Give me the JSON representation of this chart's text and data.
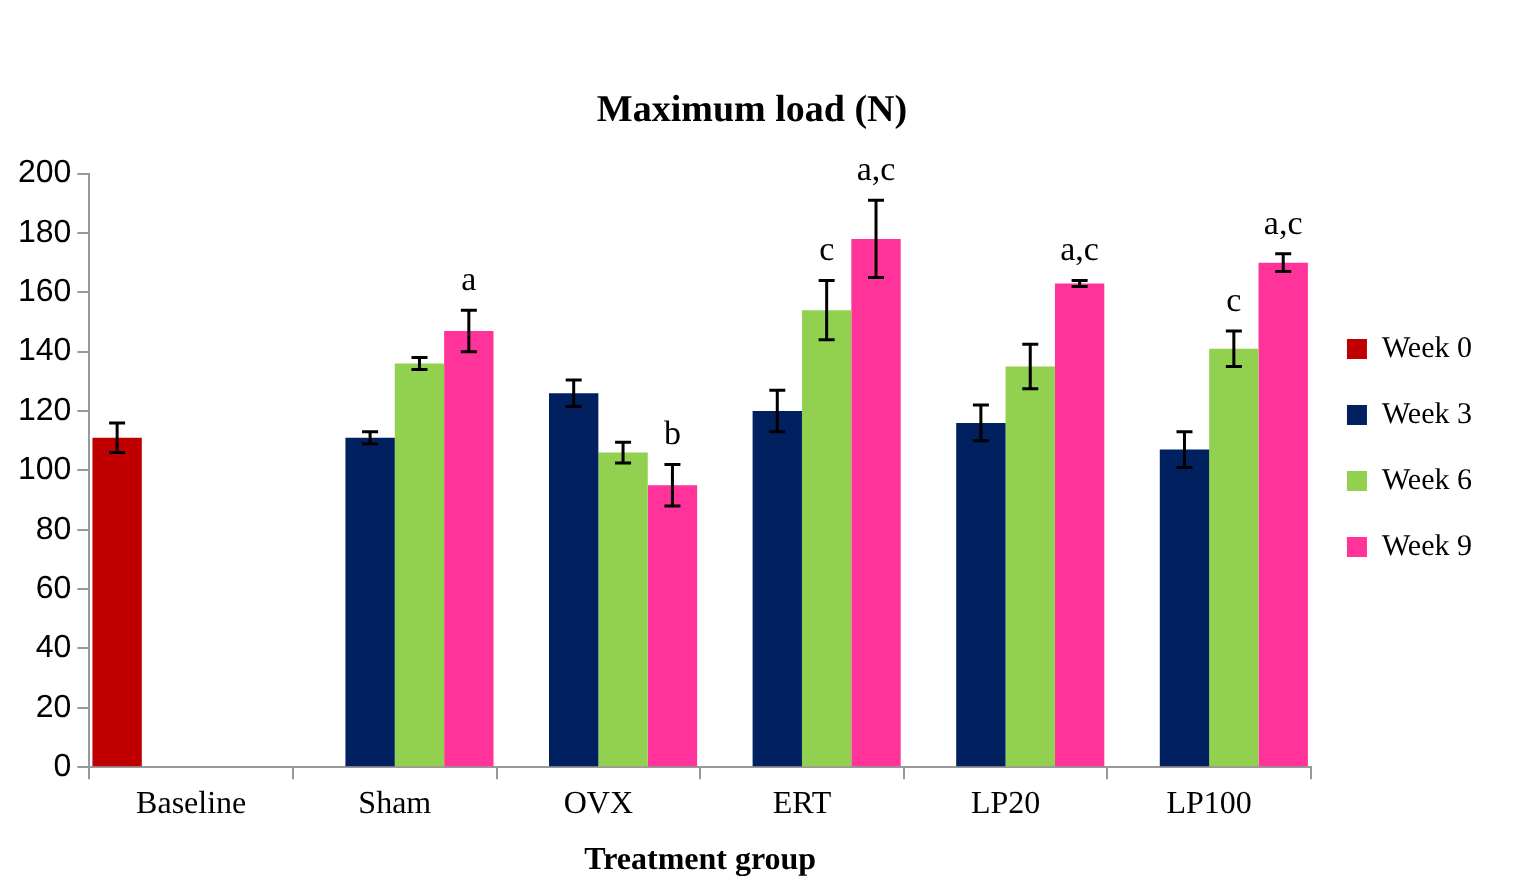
{
  "chart_data": {
    "type": "bar",
    "title": "Maximum load (N)",
    "xlabel": "Treatment group",
    "categories": [
      "Baseline",
      "Sham",
      "OVX",
      "ERT",
      "LP20",
      "LP100"
    ],
    "series": [
      {
        "name": "Week 0",
        "color": "#c00000",
        "values": [
          111,
          null,
          null,
          null,
          null,
          null
        ],
        "errors": [
          5,
          null,
          null,
          null,
          null,
          null
        ]
      },
      {
        "name": "Week 3",
        "color": "#002060",
        "values": [
          null,
          111,
          126,
          120,
          116,
          107
        ],
        "errors": [
          null,
          2,
          4.5,
          7,
          6,
          6
        ]
      },
      {
        "name": "Week 6",
        "color": "#92d050",
        "values": [
          null,
          136,
          106,
          154,
          135,
          141
        ],
        "errors": [
          null,
          2,
          3.5,
          10,
          7.5,
          6
        ],
        "value_labels": [
          null,
          null,
          null,
          "c",
          null,
          "c"
        ]
      },
      {
        "name": "Week 9",
        "color": "#ff3399",
        "values": [
          null,
          147,
          95,
          178,
          163,
          170
        ],
        "errors": [
          null,
          7,
          7,
          13,
          1,
          3
        ],
        "value_labels": [
          null,
          "a",
          "b",
          "a,c",
          "a,c",
          "a,c"
        ]
      }
    ],
    "ylim": [
      0,
      200
    ],
    "yticks": [
      0,
      20,
      40,
      60,
      80,
      100,
      120,
      140,
      160,
      180,
      200
    ],
    "grid": false,
    "legend": "right"
  }
}
